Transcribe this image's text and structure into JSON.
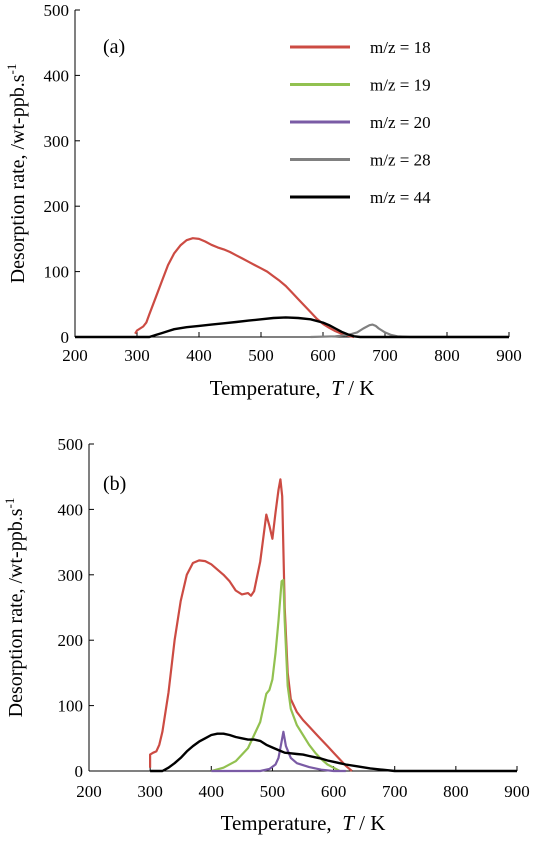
{
  "chart_data": [
    {
      "type": "line",
      "panel_label": "(a)",
      "xlabel_main": "Temperature,",
      "xlabel_var": "T",
      "xlabel_unit": "/ K",
      "ylabel": "Desorption rate, /wt-ppb.s",
      "ylabel_sup": "-1",
      "xlim": [
        200,
        900
      ],
      "ylim": [
        0,
        500
      ],
      "xticks": [
        "200",
        "300",
        "400",
        "500",
        "600",
        "700",
        "800",
        "900"
      ],
      "yticks": [
        "0",
        "100",
        "200",
        "300",
        "400",
        "500"
      ],
      "legend_position": "top-right",
      "grid": false,
      "series": [
        {
          "name": "m/z = 18",
          "color": "#cc4b43",
          "points": [
            [
              297,
              5
            ],
            [
              300,
              10
            ],
            [
              305,
              13
            ],
            [
              310,
              16
            ],
            [
              315,
              22
            ],
            [
              320,
              35
            ],
            [
              330,
              60
            ],
            [
              340,
              85
            ],
            [
              350,
              110
            ],
            [
              360,
              128
            ],
            [
              370,
              140
            ],
            [
              380,
              148
            ],
            [
              390,
              151
            ],
            [
              400,
              150
            ],
            [
              410,
              146
            ],
            [
              420,
              141
            ],
            [
              430,
              137
            ],
            [
              440,
              134
            ],
            [
              450,
              130
            ],
            [
              460,
              125
            ],
            [
              470,
              120
            ],
            [
              480,
              115
            ],
            [
              490,
              110
            ],
            [
              500,
              105
            ],
            [
              510,
              100
            ],
            [
              520,
              93
            ],
            [
              530,
              86
            ],
            [
              540,
              78
            ],
            [
              550,
              68
            ],
            [
              560,
              58
            ],
            [
              570,
              48
            ],
            [
              580,
              38
            ],
            [
              590,
              28
            ],
            [
              600,
              20
            ],
            [
              610,
              14
            ],
            [
              620,
              9
            ],
            [
              630,
              5
            ],
            [
              640,
              2
            ],
            [
              650,
              0
            ]
          ]
        },
        {
          "name": "m/z = 19",
          "color": "#92c150",
          "points": []
        },
        {
          "name": "m/z = 20",
          "color": "#7a5ba5",
          "points": []
        },
        {
          "name": "m/z = 28",
          "color": "#808080",
          "points": [
            [
              580,
              0
            ],
            [
              620,
              1
            ],
            [
              640,
              3
            ],
            [
              655,
              7
            ],
            [
              665,
              13
            ],
            [
              675,
              18
            ],
            [
              680,
              19
            ],
            [
              685,
              17
            ],
            [
              690,
              13
            ],
            [
              700,
              7
            ],
            [
              710,
              3
            ],
            [
              720,
              1
            ],
            [
              740,
              0
            ],
            [
              900,
              0
            ]
          ]
        },
        {
          "name": "m/z = 44",
          "color": "#000000",
          "points": [
            [
              200,
              0
            ],
            [
              320,
              0
            ],
            [
              330,
              3
            ],
            [
              340,
              6
            ],
            [
              350,
              9
            ],
            [
              360,
              12
            ],
            [
              380,
              15
            ],
            [
              400,
              17
            ],
            [
              420,
              19
            ],
            [
              440,
              21
            ],
            [
              460,
              23
            ],
            [
              480,
              25
            ],
            [
              500,
              27
            ],
            [
              520,
              29
            ],
            [
              540,
              30
            ],
            [
              560,
              29
            ],
            [
              580,
              27
            ],
            [
              600,
              22
            ],
            [
              610,
              18
            ],
            [
              620,
              13
            ],
            [
              630,
              8
            ],
            [
              640,
              4
            ],
            [
              650,
              1
            ],
            [
              660,
              0
            ],
            [
              900,
              0
            ]
          ]
        }
      ]
    },
    {
      "type": "line",
      "panel_label": "(b)",
      "xlabel_main": "Temperature,",
      "xlabel_var": "T",
      "xlabel_unit": "/ K",
      "ylabel": "Desorption rate, /wt-ppb.s",
      "ylabel_sup": "-1",
      "xlim": [
        200,
        900
      ],
      "ylim": [
        0,
        500
      ],
      "xticks": [
        "200",
        "300",
        "400",
        "500",
        "600",
        "700",
        "800",
        "900"
      ],
      "yticks": [
        "0",
        "100",
        "200",
        "300",
        "400",
        "500"
      ],
      "grid": false,
      "series": [
        {
          "name": "m/z = 18",
          "color": "#cc4b43",
          "points": [
            [
              300,
              5
            ],
            [
              300,
              25
            ],
            [
              305,
              28
            ],
            [
              310,
              30
            ],
            [
              315,
              40
            ],
            [
              320,
              60
            ],
            [
              330,
              120
            ],
            [
              340,
              200
            ],
            [
              350,
              260
            ],
            [
              360,
              300
            ],
            [
              370,
              318
            ],
            [
              380,
              322
            ],
            [
              390,
              321
            ],
            [
              400,
              316
            ],
            [
              410,
              308
            ],
            [
              420,
              300
            ],
            [
              430,
              290
            ],
            [
              440,
              276
            ],
            [
              450,
              270
            ],
            [
              460,
              272
            ],
            [
              465,
              268
            ],
            [
              470,
              275
            ],
            [
              480,
              320
            ],
            [
              490,
              392
            ],
            [
              495,
              375
            ],
            [
              500,
              355
            ],
            [
              505,
              395
            ],
            [
              510,
              430
            ],
            [
              513,
              446
            ],
            [
              516,
              420
            ],
            [
              520,
              250
            ],
            [
              525,
              150
            ],
            [
              530,
              110
            ],
            [
              540,
              90
            ],
            [
              550,
              78
            ],
            [
              560,
              68
            ],
            [
              570,
              58
            ],
            [
              580,
              48
            ],
            [
              590,
              38
            ],
            [
              600,
              28
            ],
            [
              610,
              18
            ],
            [
              620,
              8
            ],
            [
              630,
              0
            ]
          ]
        },
        {
          "name": "m/z = 19",
          "color": "#92c150",
          "points": [
            [
              400,
              0
            ],
            [
              420,
              5
            ],
            [
              440,
              15
            ],
            [
              460,
              35
            ],
            [
              480,
              75
            ],
            [
              490,
              118
            ],
            [
              495,
              124
            ],
            [
              500,
              140
            ],
            [
              505,
              180
            ],
            [
              510,
              230
            ],
            [
              515,
              290
            ],
            [
              518,
              292
            ],
            [
              520,
              230
            ],
            [
              525,
              130
            ],
            [
              530,
              95
            ],
            [
              540,
              70
            ],
            [
              550,
              55
            ],
            [
              560,
              40
            ],
            [
              570,
              28
            ],
            [
              580,
              18
            ],
            [
              590,
              10
            ],
            [
              600,
              5
            ],
            [
              610,
              0
            ]
          ]
        },
        {
          "name": "m/z = 20",
          "color": "#7a5ba5",
          "points": [
            [
              400,
              0
            ],
            [
              480,
              0
            ],
            [
              495,
              3
            ],
            [
              505,
              10
            ],
            [
              510,
              20
            ],
            [
              515,
              45
            ],
            [
              518,
              60
            ],
            [
              522,
              38
            ],
            [
              530,
              20
            ],
            [
              540,
              12
            ],
            [
              560,
              6
            ],
            [
              580,
              2
            ],
            [
              600,
              0
            ],
            [
              620,
              0
            ]
          ]
        },
        {
          "name": "m/z = 28",
          "color": "#808080",
          "points": []
        },
        {
          "name": "m/z = 44",
          "color": "#000000",
          "points": [
            [
              300,
              0
            ],
            [
              320,
              0
            ],
            [
              330,
              5
            ],
            [
              340,
              12
            ],
            [
              350,
              20
            ],
            [
              360,
              30
            ],
            [
              370,
              38
            ],
            [
              380,
              45
            ],
            [
              390,
              50
            ],
            [
              400,
              55
            ],
            [
              410,
              57
            ],
            [
              420,
              57
            ],
            [
              430,
              55
            ],
            [
              440,
              52
            ],
            [
              450,
              50
            ],
            [
              460,
              48
            ],
            [
              470,
              48
            ],
            [
              480,
              46
            ],
            [
              490,
              40
            ],
            [
              500,
              36
            ],
            [
              510,
              32
            ],
            [
              520,
              28
            ],
            [
              530,
              27
            ],
            [
              540,
              26
            ],
            [
              550,
              25
            ],
            [
              560,
              23
            ],
            [
              570,
              21
            ],
            [
              580,
              19
            ],
            [
              590,
              16
            ],
            [
              600,
              14
            ],
            [
              610,
              12
            ],
            [
              620,
              10
            ],
            [
              640,
              7
            ],
            [
              660,
              4
            ],
            [
              680,
              2
            ],
            [
              700,
              0
            ],
            [
              900,
              0
            ]
          ]
        }
      ]
    }
  ]
}
